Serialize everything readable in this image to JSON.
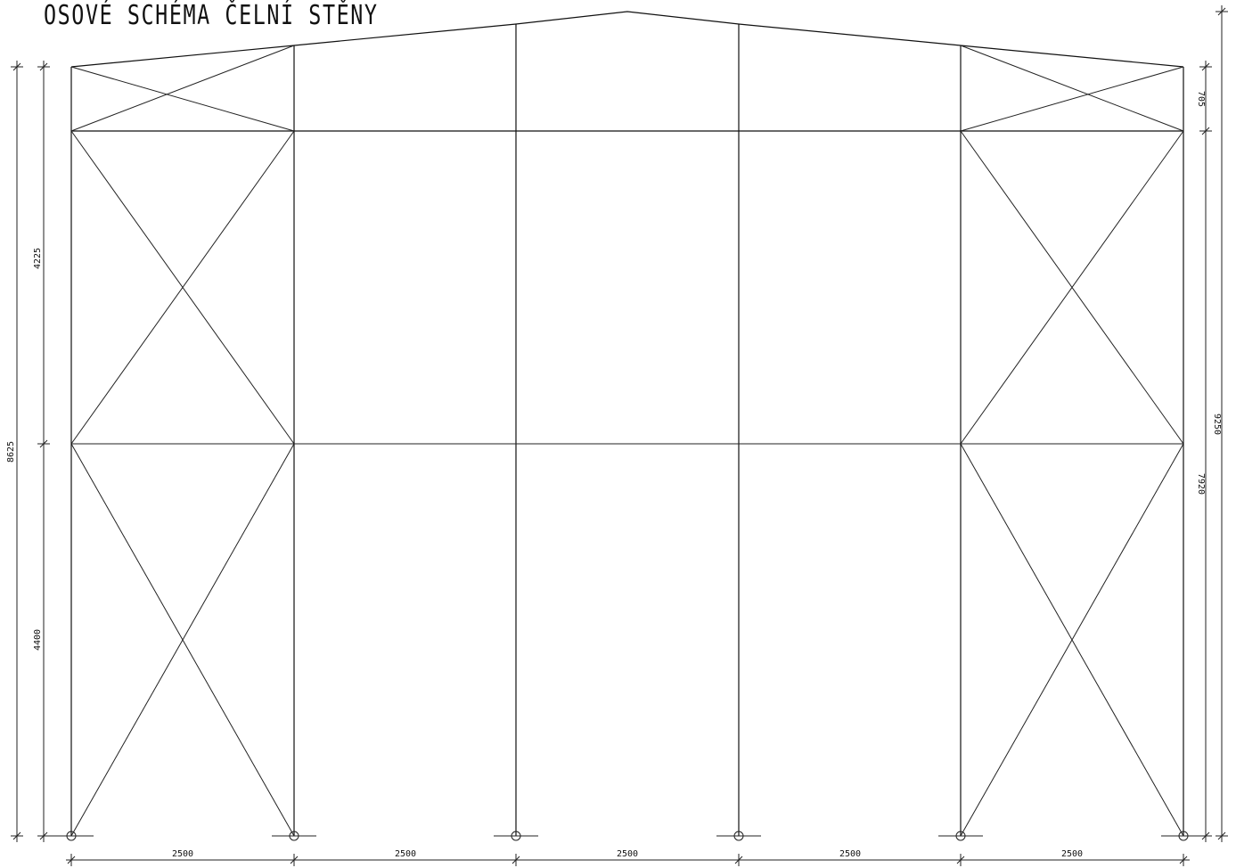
{
  "title": "OSOVÉ SCHÉMA ČELNÍ STĚNY",
  "dimensions": {
    "bottom": [
      "2500",
      "2500",
      "2500",
      "2500",
      "2500"
    ],
    "left_outer": "8625",
    "left_upper": "4225",
    "left_lower": "4400",
    "right_top": "705",
    "right_mid": "7920",
    "right_outer": "9250"
  }
}
